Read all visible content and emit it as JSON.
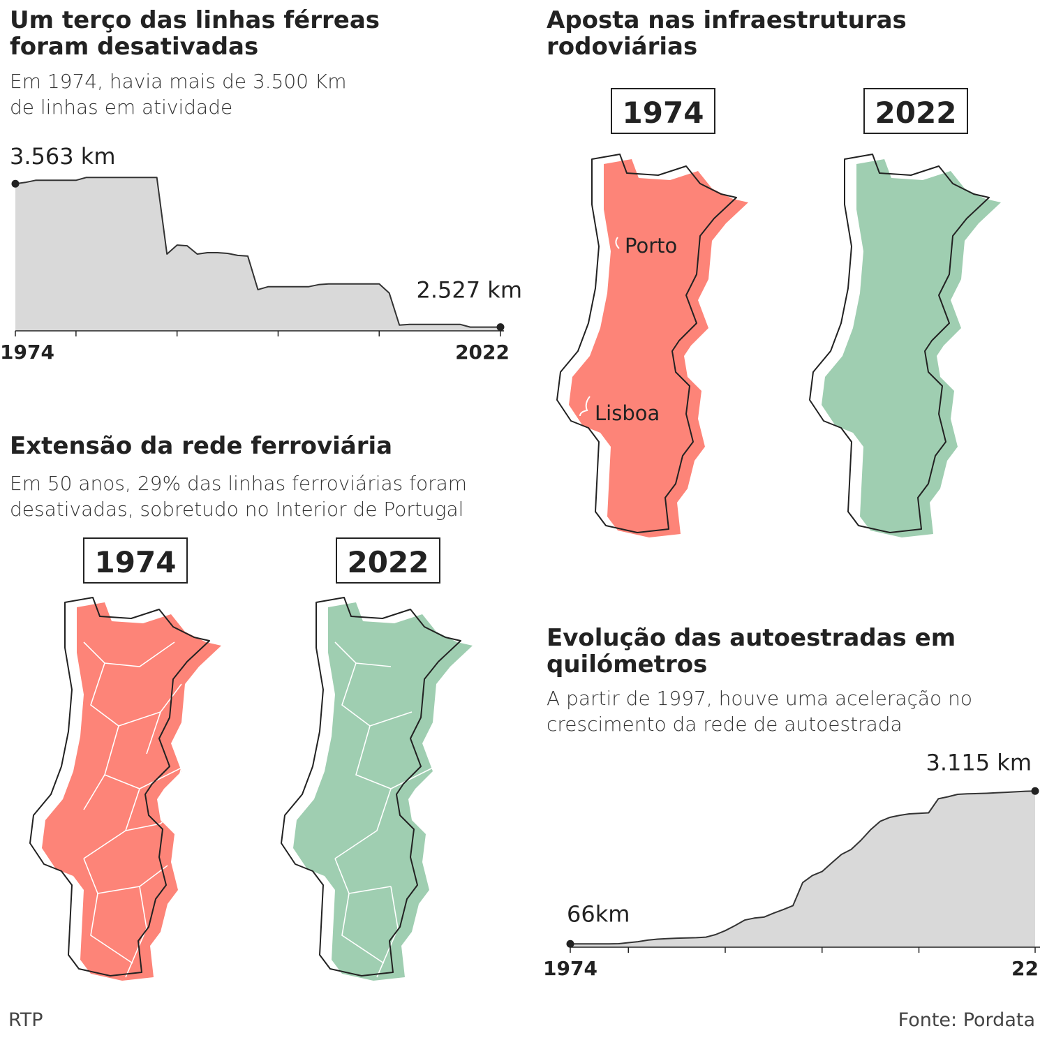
{
  "chart_data": [
    {
      "type": "area",
      "title": "Um terço das linhas férreas foram desativadas",
      "subtitle": "Em 1974, havia mais de 3.500 Km de linhas em atividade",
      "x": [
        1974,
        1975,
        1976,
        1977,
        1978,
        1979,
        1980,
        1981,
        1982,
        1983,
        1984,
        1985,
        1986,
        1987,
        1988,
        1989,
        1990,
        1991,
        1992,
        1993,
        1994,
        1995,
        1996,
        1997,
        1998,
        1999,
        2000,
        2001,
        2002,
        2003,
        2004,
        2005,
        2006,
        2007,
        2008,
        2009,
        2010,
        2011,
        2012,
        2013,
        2014,
        2015,
        2016,
        2017,
        2018,
        2019,
        2020,
        2021,
        2022
      ],
      "values": [
        3563,
        3573,
        3588,
        3588,
        3588,
        3588,
        3588,
        3608,
        3608,
        3608,
        3608,
        3608,
        3608,
        3608,
        3608,
        3055,
        3120,
        3115,
        3055,
        3065,
        3065,
        3060,
        3045,
        3040,
        2798,
        2819,
        2819,
        2819,
        2819,
        2819,
        2834,
        2839,
        2839,
        2839,
        2839,
        2839,
        2839,
        2773,
        2542,
        2547,
        2547,
        2547,
        2547,
        2547,
        2547,
        2527,
        2527,
        2527,
        2527
      ],
      "value_labels": [
        "3.563 km",
        null,
        null,
        null,
        null,
        null,
        null,
        null,
        null,
        null,
        null,
        null,
        null,
        null,
        null,
        null,
        null,
        null,
        null,
        null,
        null,
        null,
        null,
        null,
        null,
        null,
        null,
        null,
        null,
        null,
        null,
        null,
        null,
        null,
        null,
        null,
        null,
        null,
        null,
        null,
        null,
        null,
        null,
        null,
        null,
        null,
        null,
        null,
        "2.527 km"
      ],
      "color": "#d9d9d9",
      "line_color": "#333333",
      "xlim": [
        1974,
        2022
      ],
      "xticks": [
        1974,
        2022
      ],
      "minor_xticks": [
        1980,
        1990,
        2000,
        2010
      ],
      "ylim": [
        2500,
        3650
      ]
    },
    {
      "type": "area",
      "title": "Evolução das autoestradas em quilómetros",
      "subtitle": "A partir de 1997, houve uma aceleração no crescimento da rede de autoestrada",
      "x": [
        1974,
        1975,
        1976,
        1977,
        1978,
        1979,
        1980,
        1981,
        1982,
        1983,
        1984,
        1985,
        1986,
        1987,
        1988,
        1989,
        1990,
        1991,
        1992,
        1993,
        1994,
        1995,
        1996,
        1997,
        1998,
        1999,
        2000,
        2001,
        2002,
        2003,
        2004,
        2005,
        2006,
        2007,
        2008,
        2009,
        2010,
        2011,
        2012,
        2013,
        2014,
        2015,
        2016,
        2017,
        2018,
        2019,
        2020,
        2021,
        2022
      ],
      "values": [
        66,
        66,
        66,
        66,
        66,
        70,
        90,
        110,
        140,
        160,
        170,
        180,
        185,
        190,
        200,
        250,
        330,
        430,
        540,
        580,
        600,
        680,
        750,
        830,
        1290,
        1430,
        1510,
        1680,
        1850,
        1950,
        2130,
        2340,
        2510,
        2590,
        2630,
        2660,
        2670,
        2680,
        2960,
        3000,
        3050,
        3060,
        3065,
        3070,
        3080,
        3090,
        3100,
        3110,
        3115
      ],
      "value_labels": [
        "66km",
        null,
        null,
        null,
        null,
        null,
        null,
        null,
        null,
        null,
        null,
        null,
        null,
        null,
        null,
        null,
        null,
        null,
        null,
        null,
        null,
        null,
        null,
        null,
        null,
        null,
        null,
        null,
        null,
        null,
        null,
        null,
        null,
        null,
        null,
        null,
        null,
        null,
        null,
        null,
        null,
        null,
        null,
        null,
        null,
        null,
        null,
        null,
        "3.115 km"
      ],
      "color": "#d9d9d9",
      "line_color": "#333333",
      "xlim": [
        1974,
        2022
      ],
      "xticks": [
        1974,
        {
          "value": 2022,
          "label": "22"
        }
      ],
      "minor_xticks": [
        1980,
        1990,
        2000,
        2010
      ],
      "ylim": [
        0,
        3300
      ]
    }
  ],
  "road_maps": {
    "title": "Aposta nas infraestruturas rodoviárias",
    "years": [
      "1974",
      "2022"
    ],
    "cities": [
      "Porto",
      "Lisboa"
    ]
  },
  "rail_maps": {
    "title": "Extensão da rede ferroviária",
    "subtitle": "Em 50 anos, 29% das linhas ferroviárias foram desativadas, sobretudo no Interior de Portugal",
    "years": [
      "1974",
      "2022"
    ]
  },
  "publisher": "RTP",
  "source": "Fonte: Pordata"
}
